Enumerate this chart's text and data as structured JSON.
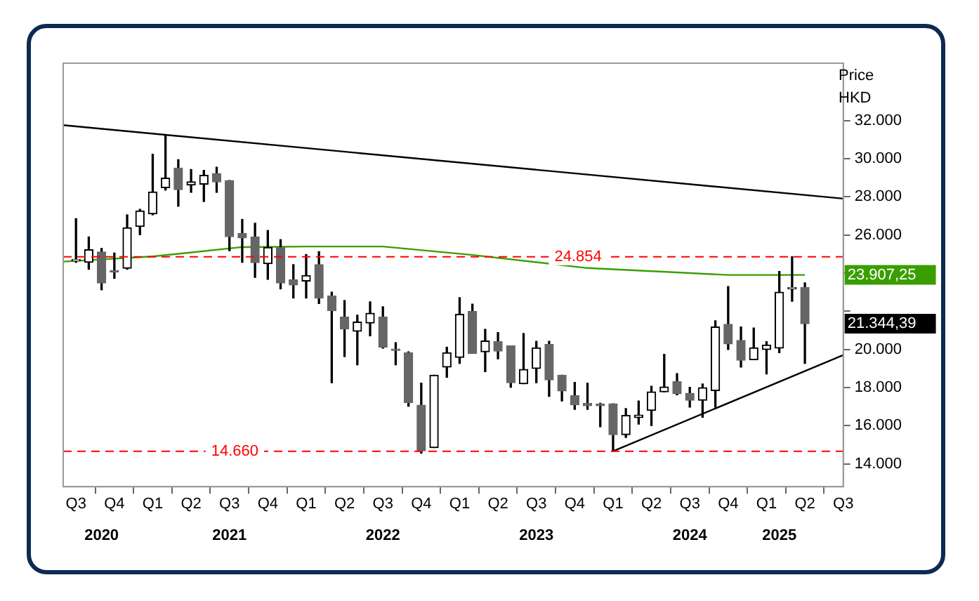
{
  "chart_data": {
    "type": "candlestick",
    "ylabel": "Price HKD",
    "x": [
      "2020-07",
      "2020-08",
      "2020-09",
      "2020-10",
      "2020-11",
      "2020-12",
      "2021-01",
      "2021-02",
      "2021-03",
      "2021-04",
      "2021-05",
      "2021-06",
      "2021-07",
      "2021-08",
      "2021-09",
      "2021-10",
      "2021-11",
      "2021-12",
      "2022-01",
      "2022-02",
      "2022-03",
      "2022-04",
      "2022-05",
      "2022-06",
      "2022-07",
      "2022-08",
      "2022-09",
      "2022-10",
      "2022-11",
      "2022-12",
      "2023-01",
      "2023-02",
      "2023-03",
      "2023-04",
      "2023-05",
      "2023-06",
      "2023-07",
      "2023-08",
      "2023-09",
      "2023-10",
      "2023-11",
      "2023-12",
      "2024-01",
      "2024-02",
      "2024-03",
      "2024-04",
      "2024-05",
      "2024-06",
      "2024-07",
      "2024-08",
      "2024-09",
      "2024-10",
      "2024-11",
      "2024-12",
      "2025-01",
      "2025-02",
      "2025-03",
      "2025-04"
    ],
    "ohlc": [
      [
        24640,
        26850,
        24560,
        24690
      ],
      [
        24560,
        25890,
        24200,
        25220
      ],
      [
        25100,
        25290,
        23120,
        23480
      ],
      [
        24130,
        25050,
        23720,
        24060
      ],
      [
        24250,
        27050,
        24200,
        26370
      ],
      [
        26440,
        27340,
        26010,
        27260
      ],
      [
        27100,
        30230,
        27050,
        28250
      ],
      [
        28470,
        31240,
        28350,
        28980
      ],
      [
        29500,
        29940,
        27500,
        28370
      ],
      [
        28610,
        29430,
        28230,
        28780
      ],
      [
        28660,
        29380,
        27750,
        29120
      ],
      [
        29220,
        29550,
        28230,
        28780
      ],
      [
        28850,
        28850,
        25170,
        25910
      ],
      [
        26080,
        26810,
        24560,
        25840
      ],
      [
        25890,
        26610,
        23770,
        24540
      ],
      [
        24490,
        26230,
        23670,
        25340
      ],
      [
        25340,
        25750,
        23170,
        23480
      ],
      [
        23650,
        24440,
        22690,
        23380
      ],
      [
        23580,
        24970,
        22690,
        23870
      ],
      [
        24440,
        25120,
        22400,
        22690
      ],
      [
        22800,
        23000,
        18250,
        22030
      ],
      [
        21700,
        22560,
        19620,
        21070
      ],
      [
        20950,
        21790,
        19190,
        21430
      ],
      [
        21380,
        22490,
        20710,
        21890
      ],
      [
        21700,
        22230,
        20060,
        20110
      ],
      [
        20010,
        20350,
        19190,
        19940
      ],
      [
        19820,
        19870,
        17020,
        17210
      ],
      [
        17070,
        18230,
        14560,
        14680
      ],
      [
        14850,
        18640,
        14850,
        18640
      ],
      [
        19070,
        20110,
        18540,
        19820
      ],
      [
        19580,
        22710,
        19260,
        21840
      ],
      [
        21990,
        22370,
        19790,
        19790
      ],
      [
        19870,
        21050,
        18830,
        20440
      ],
      [
        20400,
        20880,
        19500,
        19910
      ],
      [
        20180,
        20180,
        18010,
        18250
      ],
      [
        18200,
        20830,
        18200,
        18950
      ],
      [
        19000,
        20420,
        18250,
        20080
      ],
      [
        20250,
        20420,
        17530,
        18400
      ],
      [
        18640,
        18640,
        17290,
        17820
      ],
      [
        17580,
        18270,
        16850,
        17090
      ],
      [
        17170,
        18230,
        16850,
        17050
      ],
      [
        17090,
        17170,
        15940,
        17050
      ],
      [
        17140,
        17140,
        14660,
        15530
      ],
      [
        15530,
        16900,
        15380,
        16540
      ],
      [
        16420,
        17290,
        16080,
        16560
      ],
      [
        16800,
        18060,
        16010,
        17770
      ],
      [
        17770,
        19740,
        17770,
        18030
      ],
      [
        18300,
        18730,
        17620,
        17670
      ],
      [
        17700,
        18010,
        16970,
        17330
      ],
      [
        17330,
        18180,
        16440,
        17990
      ],
      [
        17840,
        21500,
        16970,
        21170
      ],
      [
        21310,
        23290,
        19990,
        20280
      ],
      [
        20470,
        21170,
        19070,
        19430
      ],
      [
        19460,
        21120,
        19460,
        20080
      ],
      [
        19990,
        20400,
        18710,
        20230
      ],
      [
        20060,
        24080,
        19820,
        23000
      ],
      [
        23170,
        24854,
        22520,
        23170
      ],
      [
        23240,
        23480,
        19260,
        21344.39
      ]
    ],
    "series": [
      {
        "type": "line",
        "color": "#3a9e00",
        "x": [
          "2020-06",
          "2021-01",
          "2021-08",
          "2022-01",
          "2022-07",
          "2023-02",
          "2023-11",
          "2024-06",
          "2024-10",
          "2025-04"
        ],
        "values": [
          24600,
          24870,
          25360,
          25390,
          25390,
          24950,
          24260,
          24030,
          23900,
          23900
        ]
      },
      {
        "type": "line",
        "color": "#000000",
        "x": [
          "2020-06",
          "2025-07"
        ],
        "values": [
          31750,
          27900
        ]
      },
      {
        "type": "line",
        "color": "#000000",
        "x": [
          "2024-01",
          "2025-07"
        ],
        "values": [
          14660,
          19700
        ]
      }
    ],
    "xlim": [
      "2020-06",
      "2025-07"
    ],
    "xticks": [
      {
        "value": "2020-07",
        "label": "Q3"
      },
      {
        "value": "2020-10",
        "label": "Q4"
      },
      {
        "value": "2021-01",
        "label": "Q1"
      },
      {
        "value": "2021-04",
        "label": "Q2"
      },
      {
        "value": "2021-07",
        "label": "Q3"
      },
      {
        "value": "2021-10",
        "label": "Q4"
      },
      {
        "value": "2022-01",
        "label": "Q1"
      },
      {
        "value": "2022-04",
        "label": "Q2"
      },
      {
        "value": "2022-07",
        "label": "Q3"
      },
      {
        "value": "2022-10",
        "label": "Q4"
      },
      {
        "value": "2023-01",
        "label": "Q1"
      },
      {
        "value": "2023-04",
        "label": "Q2"
      },
      {
        "value": "2023-07",
        "label": "Q3"
      },
      {
        "value": "2023-10",
        "label": "Q4"
      },
      {
        "value": "2024-01",
        "label": "Q1"
      },
      {
        "value": "2024-04",
        "label": "Q2"
      },
      {
        "value": "2024-07",
        "label": "Q3"
      },
      {
        "value": "2024-10",
        "label": "Q4"
      },
      {
        "value": "2025-01",
        "label": "Q1"
      },
      {
        "value": "2025-04",
        "label": "Q2"
      },
      {
        "value": "2025-07",
        "label": "Q3"
      }
    ],
    "x2lim": [
      "2020-06",
      "2025-07"
    ],
    "x2ticks": [
      {
        "value": "2020-09",
        "label": "2020"
      },
      {
        "value": "2021-07",
        "label": "2021"
      },
      {
        "value": "2022-07",
        "label": "2022"
      },
      {
        "value": "2023-07",
        "label": "2023"
      },
      {
        "value": "2024-07",
        "label": "2024"
      },
      {
        "value": "2025-02",
        "label": "2025"
      }
    ],
    "ylim": [
      12800,
      35000
    ],
    "yticks": [
      {
        "value": 14000,
        "label": "14.000"
      },
      {
        "value": 16000,
        "label": "16.000"
      },
      {
        "value": 18000,
        "label": "18.000"
      },
      {
        "value": 20000,
        "label": "20.000"
      },
      {
        "value": 22000,
        "label": null
      },
      {
        "value": 24000,
        "label": null
      },
      {
        "value": 26000,
        "label": "26.000"
      },
      {
        "value": 28000,
        "label": "28.000"
      },
      {
        "value": 30000,
        "label": "30.000"
      },
      {
        "value": 32000,
        "label": "32.000"
      }
    ],
    "ref_lines": [
      {
        "axis": "y",
        "value": 24854,
        "label": "24.854",
        "color": "#ff0000",
        "line_style": "dashed"
      },
      {
        "axis": "y",
        "value": 14660,
        "label": "14.660",
        "color": "#ff0000",
        "line_style": "dashed"
      }
    ],
    "annotations": [
      "23.907,25",
      "21.344,39"
    ],
    "grid": false,
    "legend": false
  }
}
